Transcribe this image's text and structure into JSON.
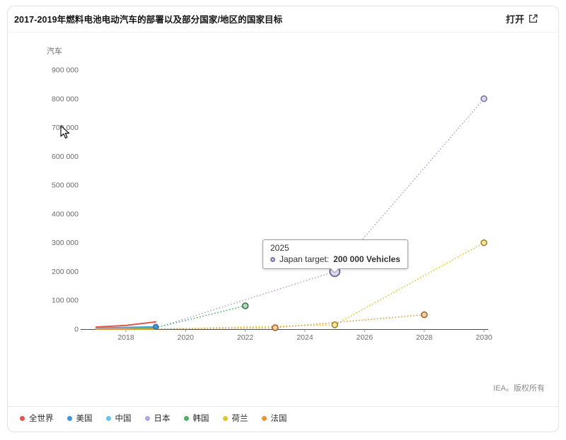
{
  "header": {
    "title": "2017-2019年燃料电池电动汽车的部署以及部分国家/地区的国家目标",
    "open_label": "打开"
  },
  "tooltip": {
    "title": "2025",
    "label": "Japan target: ",
    "value": "200 000 Vehicles",
    "series_index": 3
  },
  "footer": {
    "credit": "IEA。版权所有"
  },
  "legend": {
    "items": [
      {
        "label": "全世界"
      },
      {
        "label": "美国"
      },
      {
        "label": "中国"
      },
      {
        "label": "日本"
      },
      {
        "label": "韩国"
      },
      {
        "label": "荷兰"
      },
      {
        "label": "法国"
      }
    ]
  },
  "chart_data": {
    "type": "line",
    "title": "2017-2019年燃料电池电动汽车的部署以及部分国家/地区的国家目标",
    "ylabel": "汽车",
    "xlabel": "",
    "xlim": [
      2016.5,
      2030.2
    ],
    "ylim": [
      0,
      900000
    ],
    "grid": false,
    "legend_position": "bottom",
    "x_ticks": [
      2018,
      2020,
      2022,
      2024,
      2026,
      2028,
      2030
    ],
    "x_tick_labels": [
      "2018",
      "2020",
      "2022",
      "2024",
      "2026",
      "2028",
      "2030"
    ],
    "y_ticks": [
      0,
      100000,
      200000,
      300000,
      400000,
      500000,
      600000,
      700000,
      800000,
      900000
    ],
    "y_tick_labels": [
      "0",
      "100 000",
      "200 000",
      "300 000",
      "400 000",
      "500 000",
      "600 000",
      "700 000",
      "800 000",
      "900 000"
    ],
    "series": [
      {
        "name": "全世界",
        "color": "#e2574c",
        "solid": [
          [
            2017,
            7200
          ],
          [
            2018,
            12950
          ],
          [
            2019,
            25210
          ]
        ]
      },
      {
        "name": "美国",
        "color": "#3f97d9",
        "end_marker": true,
        "solid": [
          [
            2017,
            3500
          ],
          [
            2018,
            5900
          ],
          [
            2019,
            8000
          ]
        ]
      },
      {
        "name": "中国",
        "color": "#67c3ef",
        "solid": [
          [
            2017,
            1200
          ],
          [
            2018,
            1530
          ],
          [
            2019,
            6180
          ]
        ]
      },
      {
        "name": "日本",
        "color": "#b2a7e3",
        "solid": [
          [
            2017,
            2320
          ],
          [
            2018,
            2930
          ],
          [
            2019,
            3700
          ]
        ],
        "dotted": [
          [
            2019,
            3700
          ],
          [
            2025,
            200000
          ],
          [
            2030,
            800000
          ]
        ],
        "targets": [
          [
            2025,
            200000
          ],
          [
            2030,
            800000
          ]
        ]
      },
      {
        "name": "韩国",
        "color": "#4fae69",
        "solid": [
          [
            2017,
            170
          ],
          [
            2018,
            890
          ],
          [
            2019,
            5080
          ]
        ],
        "dotted": [
          [
            2019,
            5080
          ],
          [
            2022,
            81000
          ]
        ],
        "targets": [
          [
            2022,
            81000
          ]
        ]
      },
      {
        "name": "荷兰",
        "color": "#e3c531",
        "solid": [
          [
            2017,
            40
          ],
          [
            2018,
            100
          ],
          [
            2019,
            215
          ]
        ],
        "dotted": [
          [
            2019,
            215
          ],
          [
            2025,
            15000
          ],
          [
            2030,
            300000
          ]
        ],
        "targets": [
          [
            2025,
            15000
          ],
          [
            2030,
            300000
          ]
        ]
      },
      {
        "name": "法国",
        "color": "#ec9336",
        "solid": [
          [
            2017,
            260
          ],
          [
            2018,
            320
          ],
          [
            2019,
            400
          ]
        ],
        "dotted": [
          [
            2019,
            400
          ],
          [
            2023,
            5000
          ],
          [
            2028,
            50000
          ]
        ],
        "targets": [
          [
            2023,
            5000
          ],
          [
            2028,
            50000
          ]
        ]
      }
    ],
    "highlight": {
      "series_index": 3,
      "x": 2025,
      "y": 200000
    }
  }
}
